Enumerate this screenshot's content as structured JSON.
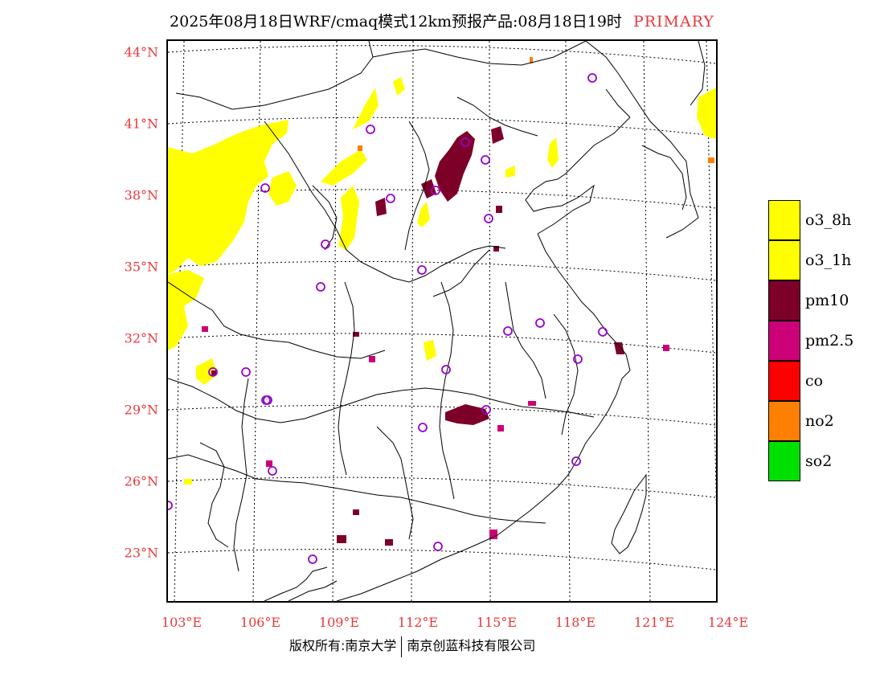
{
  "title": {
    "main": "2025年08月18日WRF/cmaq模式12km预报产品:08月18日19时",
    "tag": "PRIMARY"
  },
  "axes": {
    "lat_labels": [
      "44°N",
      "41°N",
      "38°N",
      "35°N",
      "32°N",
      "29°N",
      "26°N",
      "23°N"
    ],
    "lon_labels": [
      "103°E",
      "106°E",
      "109°E",
      "112°E",
      "115°E",
      "118°E",
      "121°E",
      "124°E"
    ]
  },
  "legend": {
    "items": [
      {
        "label": "o3_8h",
        "color": "#ffff00"
      },
      {
        "label": "o3_1h",
        "color": "#ffff00"
      },
      {
        "label": "pm10",
        "color": "#7d0028"
      },
      {
        "label": "pm2.5",
        "color": "#cc0077"
      },
      {
        "label": "co",
        "color": "#ff0000"
      },
      {
        "label": "no2",
        "color": "#ff7f00"
      },
      {
        "label": "so2",
        "color": "#00e000"
      }
    ]
  },
  "footer": {
    "left": "版权所有:南京大学",
    "right": "南京创蓝科技有限公司"
  },
  "colors": {
    "o3": "#ffff00",
    "pm10": "#7d0028",
    "pm25": "#cc0077",
    "no2": "#ff7f00",
    "city_marker": "#9900cc",
    "label_red": "#e8383b"
  }
}
